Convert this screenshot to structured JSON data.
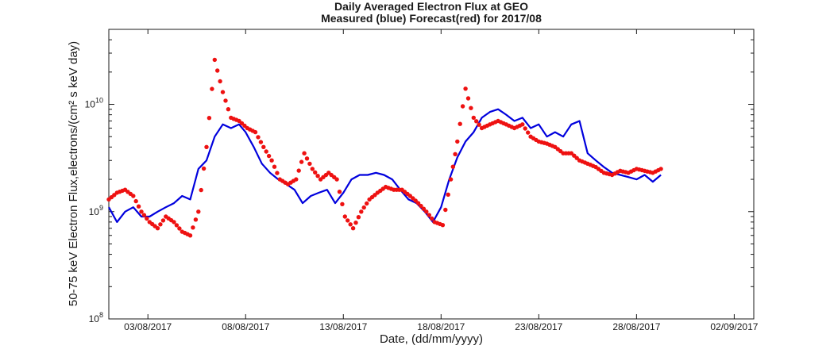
{
  "chart_data": {
    "type": "line",
    "title": "Daily Averaged Electron Flux at GEO",
    "subtitle": "Measured (blue) Forecast(red) for 2017/08",
    "xlabel": "Date, (dd/mm/yyyy)",
    "ylabel": "50-75 keV Electron Flux,electrons/(cm² s keV day)",
    "yscale": "log",
    "xlim": [
      "01/08/2017",
      "03/09/2017"
    ],
    "ylim": [
      100000000.0,
      50000000000.0
    ],
    "x_tick_labels": [
      "03/08/2017",
      "08/08/2017",
      "13/08/2017",
      "18/08/2017",
      "23/08/2017",
      "28/08/2017",
      "02/09/2017"
    ],
    "y_tick_labels": [
      {
        "base": "10",
        "exp": "8"
      },
      {
        "base": "10",
        "exp": "9"
      },
      {
        "base": "10",
        "exp": "10"
      }
    ],
    "grid": false,
    "series": [
      {
        "color": "#0000dd",
        "style": "line",
        "x": [
          "01/08/2017 00:00",
          "01/08/2017 10:00",
          "01/08/2017 20:00",
          "02/08/2017 06:00",
          "02/08/2017 16:00",
          "03/08/2017 02:00",
          "03/08/2017 12:00",
          "03/08/2017 22:00",
          "04/08/2017 08:00",
          "04/08/2017 18:00",
          "05/08/2017 04:00",
          "05/08/2017 14:00",
          "06/08/2017 00:00",
          "06/08/2017 10:00",
          "06/08/2017 20:00",
          "07/08/2017 06:00",
          "07/08/2017 16:00",
          "08/08/2017 00:00",
          "08/08/2017 10:00",
          "08/08/2017 20:00",
          "09/08/2017 06:00",
          "09/08/2017 16:00",
          "10/08/2017 02:00",
          "10/08/2017 12:00",
          "10/08/2017 22:00",
          "11/08/2017 08:00",
          "11/08/2017 18:00",
          "12/08/2017 04:00",
          "12/08/2017 14:00",
          "13/08/2017 00:00",
          "13/08/2017 10:00",
          "13/08/2017 20:00",
          "14/08/2017 06:00",
          "14/08/2017 16:00",
          "15/08/2017 02:00",
          "15/08/2017 12:00",
          "15/08/2017 22:00",
          "16/08/2017 08:00",
          "16/08/2017 18:00",
          "17/08/2017 04:00",
          "17/08/2017 14:00",
          "18/08/2017 00:00",
          "18/08/2017 10:00",
          "18/08/2017 20:00",
          "19/08/2017 06:00",
          "19/08/2017 16:00",
          "20/08/2017 02:00",
          "20/08/2017 12:00",
          "20/08/2017 22:00",
          "21/08/2017 08:00",
          "21/08/2017 18:00",
          "22/08/2017 04:00",
          "22/08/2017 14:00",
          "23/08/2017 00:00",
          "23/08/2017 10:00",
          "23/08/2017 20:00",
          "24/08/2017 06:00",
          "24/08/2017 16:00",
          "25/08/2017 02:00",
          "25/08/2017 12:00",
          "25/08/2017 22:00",
          "26/08/2017 08:00",
          "26/08/2017 18:00",
          "27/08/2017 04:00",
          "27/08/2017 14:00",
          "28/08/2017 00:00",
          "28/08/2017 10:00",
          "28/08/2017 20:00",
          "29/08/2017 06:00"
        ],
        "y": [
          1100000000.0,
          800000000.0,
          1000000000.0,
          1100000000.0,
          900000000.0,
          900000000.0,
          1000000000.0,
          1100000000.0,
          1200000000.0,
          1400000000.0,
          1300000000.0,
          2500000000.0,
          3000000000.0,
          5000000000.0,
          6500000000.0,
          6000000000.0,
          6500000000.0,
          5500000000.0,
          4000000000.0,
          2800000000.0,
          2300000000.0,
          2000000000.0,
          1800000000.0,
          1600000000.0,
          1200000000.0,
          1400000000.0,
          1500000000.0,
          1600000000.0,
          1200000000.0,
          1500000000.0,
          2000000000.0,
          2200000000.0,
          2200000000.0,
          2300000000.0,
          2200000000.0,
          2000000000.0,
          1600000000.0,
          1300000000.0,
          1200000000.0,
          1000000000.0,
          800000000.0,
          1100000000.0,
          2000000000.0,
          3200000000.0,
          4500000000.0,
          5500000000.0,
          7500000000.0,
          8500000000.0,
          9000000000.0,
          8000000000.0,
          7000000000.0,
          7500000000.0,
          6000000000.0,
          6500000000.0,
          5000000000.0,
          5500000000.0,
          5000000000.0,
          6500000000.0,
          7000000000.0,
          3500000000.0,
          3000000000.0,
          2600000000.0,
          2300000000.0,
          2200000000.0,
          2100000000.0,
          2000000000.0,
          2200000000.0,
          1900000000.0,
          2200000000.0
        ]
      },
      {
        "color": "#ee1111",
        "style": "dots",
        "x": [
          "01/08/2017 00:00",
          "01/08/2017 10:00",
          "01/08/2017 20:00",
          "02/08/2017 06:00",
          "02/08/2017 16:00",
          "03/08/2017 02:00",
          "03/08/2017 12:00",
          "03/08/2017 22:00",
          "04/08/2017 08:00",
          "04/08/2017 18:00",
          "05/08/2017 04:00",
          "05/08/2017 14:00",
          "06/08/2017 00:00",
          "06/08/2017 10:00",
          "06/08/2017 20:00",
          "07/08/2017 06:00",
          "07/08/2017 16:00",
          "08/08/2017 02:00",
          "08/08/2017 12:00",
          "08/08/2017 22:00",
          "09/08/2017 08:00",
          "09/08/2017 18:00",
          "10/08/2017 04:00",
          "10/08/2017 14:00",
          "11/08/2017 00:00",
          "11/08/2017 10:00",
          "11/08/2017 20:00",
          "12/08/2017 06:00",
          "12/08/2017 16:00",
          "13/08/2017 02:00",
          "13/08/2017 12:00",
          "13/08/2017 22:00",
          "14/08/2017 08:00",
          "14/08/2017 18:00",
          "15/08/2017 04:00",
          "15/08/2017 14:00",
          "16/08/2017 00:00",
          "16/08/2017 10:00",
          "16/08/2017 20:00",
          "17/08/2017 06:00",
          "17/08/2017 16:00",
          "18/08/2017 02:00",
          "18/08/2017 12:00",
          "18/08/2017 20:00",
          "19/08/2017 06:00",
          "19/08/2017 16:00",
          "20/08/2017 02:00",
          "20/08/2017 12:00",
          "20/08/2017 22:00",
          "21/08/2017 08:00",
          "21/08/2017 18:00",
          "22/08/2017 04:00",
          "22/08/2017 14:00",
          "23/08/2017 00:00",
          "23/08/2017 10:00",
          "23/08/2017 20:00",
          "24/08/2017 06:00",
          "24/08/2017 16:00",
          "25/08/2017 02:00",
          "25/08/2017 12:00",
          "25/08/2017 22:00",
          "26/08/2017 08:00",
          "26/08/2017 18:00",
          "27/08/2017 04:00",
          "27/08/2017 14:00",
          "28/08/2017 00:00",
          "28/08/2017 10:00",
          "28/08/2017 20:00",
          "29/08/2017 06:00"
        ],
        "y": [
          1300000000.0,
          1500000000.0,
          1600000000.0,
          1400000000.0,
          1000000000.0,
          800000000.0,
          700000000.0,
          900000000.0,
          800000000.0,
          650000000.0,
          600000000.0,
          1000000000.0,
          4000000000.0,
          26000000000.0,
          13000000000.0,
          7500000000.0,
          7000000000.0,
          6000000000.0,
          5500000000.0,
          4000000000.0,
          3000000000.0,
          2000000000.0,
          1800000000.0,
          2000000000.0,
          3500000000.0,
          2500000000.0,
          2000000000.0,
          2300000000.0,
          2000000000.0,
          900000000.0,
          700000000.0,
          1000000000.0,
          1300000000.0,
          1500000000.0,
          1700000000.0,
          1600000000.0,
          1600000000.0,
          1400000000.0,
          1200000000.0,
          1000000000.0,
          800000000.0,
          750000000.0,
          2000000000.0,
          4500000000.0,
          14000000000.0,
          7500000000.0,
          6000000000.0,
          6500000000.0,
          7000000000.0,
          6500000000.0,
          6000000000.0,
          6500000000.0,
          5000000000.0,
          4500000000.0,
          4300000000.0,
          4000000000.0,
          3500000000.0,
          3500000000.0,
          3000000000.0,
          2800000000.0,
          2600000000.0,
          2300000000.0,
          2200000000.0,
          2400000000.0,
          2300000000.0,
          2500000000.0,
          2400000000.0,
          2300000000.0,
          2500000000.0
        ]
      }
    ]
  }
}
